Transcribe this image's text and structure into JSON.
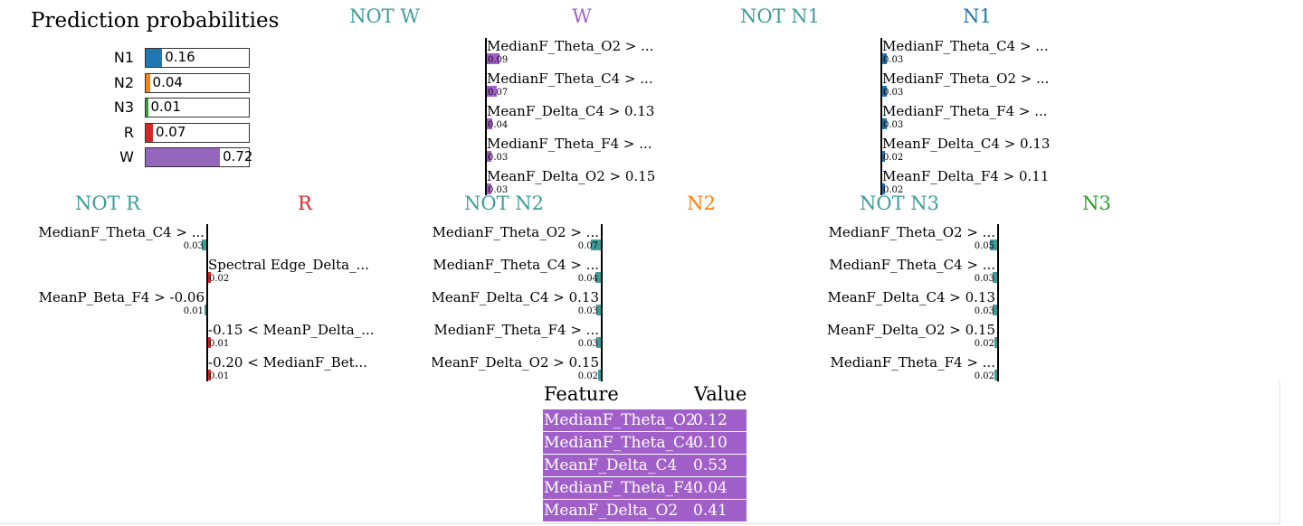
{
  "prediction": {
    "title": "Prediction probabilities",
    "items": [
      {
        "label": "N1",
        "value": 0.16,
        "display": "0.16",
        "color": "#1f77b4"
      },
      {
        "label": "N2",
        "value": 0.04,
        "display": "0.04",
        "color": "#ff7f0e"
      },
      {
        "label": "N3",
        "value": 0.01,
        "display": "0.01",
        "color": "#2ca02c"
      },
      {
        "label": "R",
        "value": 0.07,
        "display": "0.07",
        "color": "#d62728"
      },
      {
        "label": "W",
        "value": 0.72,
        "display": "0.72",
        "color": "#9467bd"
      }
    ]
  },
  "chart_data": [
    {
      "type": "bar",
      "not_label": "NOT W",
      "class_label": "W",
      "not_color": "#3d9e9a",
      "class_color": "#a160c9",
      "features": [
        {
          "name": "MedianF_Theta_O2 > ...",
          "value": 0.09,
          "display": "0.09"
        },
        {
          "name": "MedianF_Theta_C4 > ...",
          "value": 0.07,
          "display": "0.07"
        },
        {
          "name": "MeanF_Delta_C4 > 0.13",
          "value": 0.04,
          "display": "0.04"
        },
        {
          "name": "MedianF_Theta_F4 > ...",
          "value": 0.03,
          "display": "0.03"
        },
        {
          "name": "MeanF_Delta_O2 > 0.15",
          "value": 0.03,
          "display": "0.03"
        }
      ]
    },
    {
      "type": "bar",
      "not_label": "NOT N1",
      "class_label": "N1",
      "not_color": "#3d9e9a",
      "class_color": "#1f77b4",
      "features": [
        {
          "name": "MedianF_Theta_C4 > ...",
          "value": 0.03,
          "display": "0.03"
        },
        {
          "name": "MedianF_Theta_O2 > ...",
          "value": 0.03,
          "display": "0.03"
        },
        {
          "name": "MedianF_Theta_F4 > ...",
          "value": 0.03,
          "display": "0.03"
        },
        {
          "name": "MeanF_Delta_C4 > 0.13",
          "value": 0.02,
          "display": "0.02"
        },
        {
          "name": "MeanF_Delta_F4 > 0.11",
          "value": 0.02,
          "display": "0.02"
        }
      ]
    },
    {
      "type": "bar",
      "not_label": "NOT R",
      "class_label": "R",
      "not_color": "#3d9e9a",
      "class_color": "#d62728",
      "features": [
        {
          "name": "MedianF_Theta_C4 > ...",
          "value": -0.03,
          "display": "0.03"
        },
        {
          "name": "Spectral Edge_Delta_...",
          "value": 0.02,
          "display": "0.02"
        },
        {
          "name": "MeanP_Beta_F4 > -0.06",
          "value": -0.01,
          "display": "0.01"
        },
        {
          "name": "-0.15 < MeanP_Delta_...",
          "value": 0.01,
          "display": "0.01"
        },
        {
          "name": "-0.20 < MedianF_Bet...",
          "value": 0.01,
          "display": "0.01"
        }
      ]
    },
    {
      "type": "bar",
      "not_label": "NOT N2",
      "class_label": "N2",
      "not_color": "#3d9e9a",
      "class_color": "#ff7f0e",
      "features": [
        {
          "name": "MedianF_Theta_O2 > ...",
          "value": -0.07,
          "display": "0.07"
        },
        {
          "name": "MedianF_Theta_C4 > ...",
          "value": -0.04,
          "display": "0.04"
        },
        {
          "name": "MeanF_Delta_C4 > 0.13",
          "value": -0.03,
          "display": "0.03"
        },
        {
          "name": "MedianF_Theta_F4 > ...",
          "value": -0.03,
          "display": "0.03"
        },
        {
          "name": "MeanF_Delta_O2 > 0.15",
          "value": -0.02,
          "display": "0.02"
        }
      ]
    },
    {
      "type": "bar",
      "not_label": "NOT N3",
      "class_label": "N3",
      "not_color": "#3d9e9a",
      "class_color": "#2ca02c",
      "features": [
        {
          "name": "MedianF_Theta_O2 > ...",
          "value": -0.05,
          "display": "0.05"
        },
        {
          "name": "MedianF_Theta_C4 > ...",
          "value": -0.03,
          "display": "0.03"
        },
        {
          "name": "MeanF_Delta_C4 > 0.13",
          "value": -0.03,
          "display": "0.03"
        },
        {
          "name": "MeanF_Delta_O2 > 0.15",
          "value": -0.02,
          "display": "0.02"
        },
        {
          "name": "MedianF_Theta_F4 > ...",
          "value": -0.02,
          "display": "0.02"
        }
      ]
    }
  ],
  "table": {
    "header_feature": "Feature",
    "header_value": "Value",
    "row_color": "#a160c9",
    "rows": [
      {
        "feature": "MedianF_Theta_O2",
        "value": "0.12"
      },
      {
        "feature": "MedianF_Theta_C4",
        "value": "0.10"
      },
      {
        "feature": "MeanF_Delta_C4",
        "value": "0.53"
      },
      {
        "feature": "MedianF_Theta_F4",
        "value": "0.04"
      },
      {
        "feature": "MeanF_Delta_O2",
        "value": "0.41"
      }
    ]
  }
}
